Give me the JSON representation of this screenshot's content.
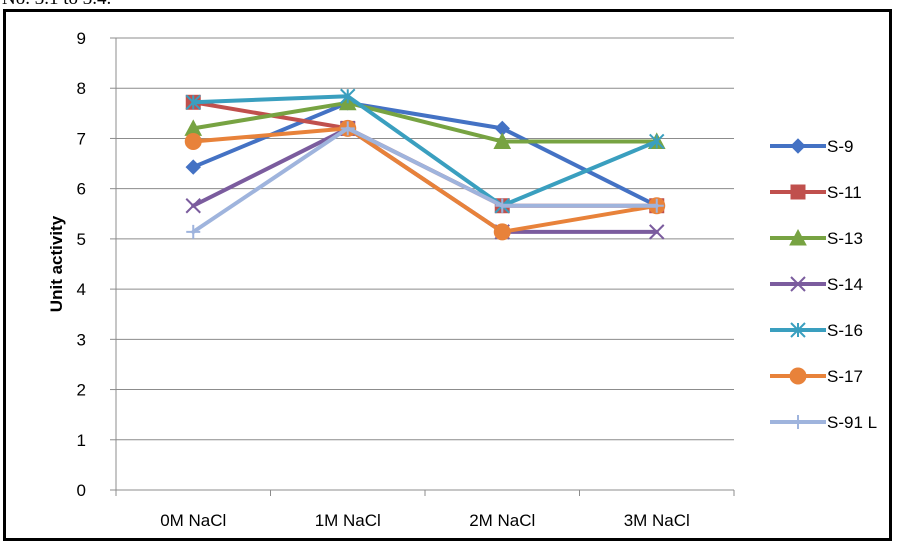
{
  "caption": "No. 3.1 to 3.4.",
  "chart_data": {
    "type": "line",
    "title": "",
    "xlabel": "",
    "ylabel": "Unit activity",
    "categories": [
      "0M NaCl",
      "1M NaCl",
      "2M NaCl",
      "3M NaCl"
    ],
    "ylim": [
      0,
      9
    ],
    "yticks": [
      0,
      1,
      2,
      3,
      4,
      5,
      6,
      7,
      8,
      9
    ],
    "grid": "horizontal",
    "legend_position": "right",
    "series": [
      {
        "name": "S-9",
        "values": [
          6.43,
          7.71,
          7.2,
          5.66
        ],
        "color": "#4472c4",
        "marker": "diamond"
      },
      {
        "name": "S-11",
        "values": [
          7.72,
          7.2,
          5.66,
          5.66
        ],
        "color": "#c0504d",
        "marker": "square"
      },
      {
        "name": "S-13",
        "values": [
          7.2,
          7.71,
          6.94,
          6.94
        ],
        "color": "#77a342",
        "marker": "triangle"
      },
      {
        "name": "S-14",
        "values": [
          5.66,
          7.2,
          5.14,
          5.14
        ],
        "color": "#7b5c9e",
        "marker": "x"
      },
      {
        "name": "S-16",
        "values": [
          7.72,
          7.84,
          5.66,
          6.94
        ],
        "color": "#3a9fbf",
        "marker": "asterisk"
      },
      {
        "name": "S-17",
        "values": [
          6.94,
          7.2,
          5.14,
          5.66
        ],
        "color": "#e8823a",
        "marker": "circle"
      },
      {
        "name": "S-91 L",
        "values": [
          5.14,
          7.2,
          5.66,
          5.66
        ],
        "color": "#9fb4dd",
        "marker": "plus"
      }
    ]
  }
}
